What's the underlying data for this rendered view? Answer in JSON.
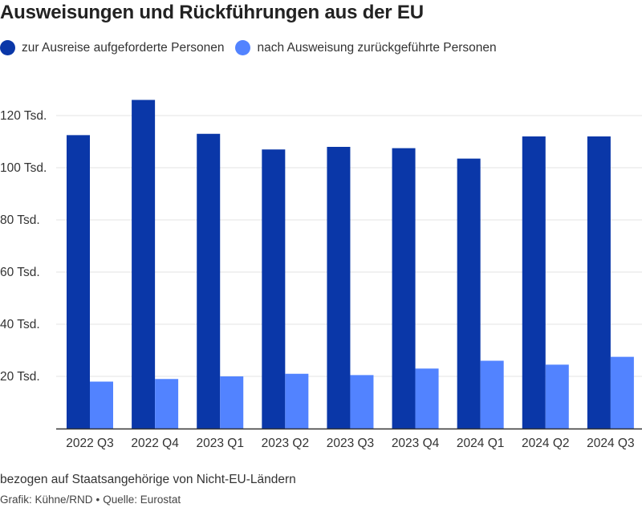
{
  "title": "Ausweisungen und Rückführungen aus der EU",
  "colors": {
    "series1": "#0a37a8",
    "series2": "#5283ff",
    "grid": "#e3e3e3",
    "axis": "#333333"
  },
  "chart_data": {
    "type": "bar",
    "categories": [
      "2022 Q3",
      "2022 Q4",
      "2023 Q1",
      "2023 Q2",
      "2023 Q3",
      "2023 Q4",
      "2024 Q1",
      "2024 Q2",
      "2024 Q3"
    ],
    "series": [
      {
        "name": "zur Ausreise aufgeforderte Personen",
        "values": [
          112.5,
          126,
          113,
          107,
          108,
          107.5,
          103.5,
          112,
          112
        ]
      },
      {
        "name": "nach Ausweisung zurückgeführte Personen",
        "values": [
          18,
          19,
          20,
          21,
          20.5,
          23,
          26,
          24.5,
          27.5
        ]
      }
    ],
    "yticks": [
      20,
      40,
      60,
      80,
      100,
      120
    ],
    "ytick_labels": [
      "20 Tsd.",
      "40 Tsd.",
      "60 Tsd.",
      "80 Tsd.",
      "100 Tsd.",
      "120 Tsd."
    ],
    "ylim": [
      0,
      130
    ],
    "grid": true,
    "legend_position": "top-left"
  },
  "note": "bezogen auf Staatsangehörige von Nicht-EU-Ländern",
  "credit": {
    "grafik": "Grafik: Kühne/RND",
    "separator": "•",
    "quelle": "Quelle: Eurostat"
  }
}
